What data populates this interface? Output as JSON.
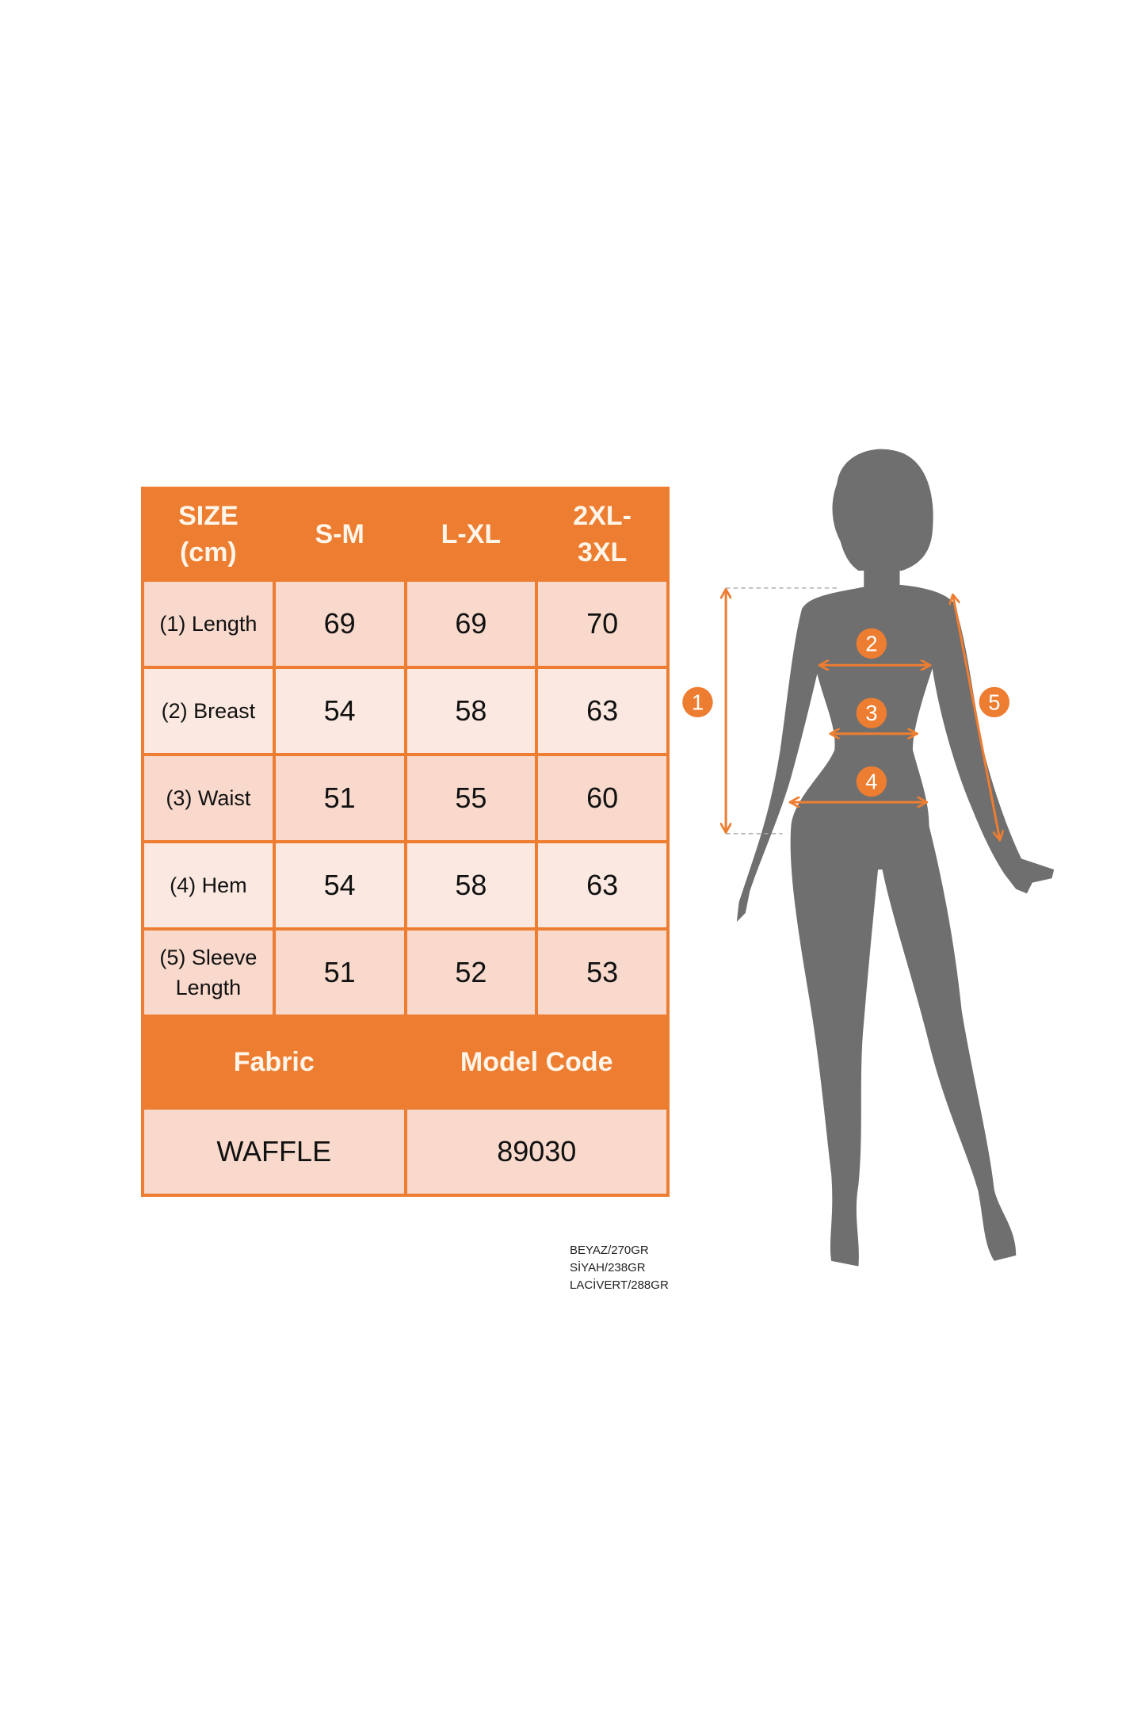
{
  "colors": {
    "accent": "#ed7d31",
    "row_dark": "#f8d9cc",
    "row_light": "#fbe9e1",
    "silhouette": "#6f6f6f"
  },
  "table": {
    "header": [
      "SIZE (cm)",
      "S-M",
      "L-XL",
      "2XL-3XL"
    ],
    "header_lines": {
      "size": [
        "SIZE",
        "(cm)"
      ],
      "xxl": [
        "2XL-",
        "3XL"
      ]
    },
    "rows": [
      {
        "label": "(1) Length",
        "values": [
          "69",
          "69",
          "70"
        ]
      },
      {
        "label": "(2) Breast",
        "values": [
          "54",
          "58",
          "63"
        ]
      },
      {
        "label": "(3) Waist",
        "values": [
          "51",
          "55",
          "60"
        ]
      },
      {
        "label": "(4) Hem",
        "values": [
          "54",
          "58",
          "63"
        ]
      },
      {
        "label": "(5) Sleeve Length",
        "label_lines": [
          "(5) Sleeve",
          "Length"
        ],
        "values": [
          "51",
          "52",
          "53"
        ]
      }
    ],
    "fabric_label": "Fabric",
    "model_code_label": "Model Code",
    "fabric_value": "WAFFLE",
    "model_code_value": "89030"
  },
  "weights": [
    "BEYAZ/270GR",
    "SİYAH/238GR",
    "LACİVERT/288GR"
  ],
  "figure": {
    "markers": [
      "1",
      "2",
      "3",
      "4",
      "5"
    ]
  }
}
